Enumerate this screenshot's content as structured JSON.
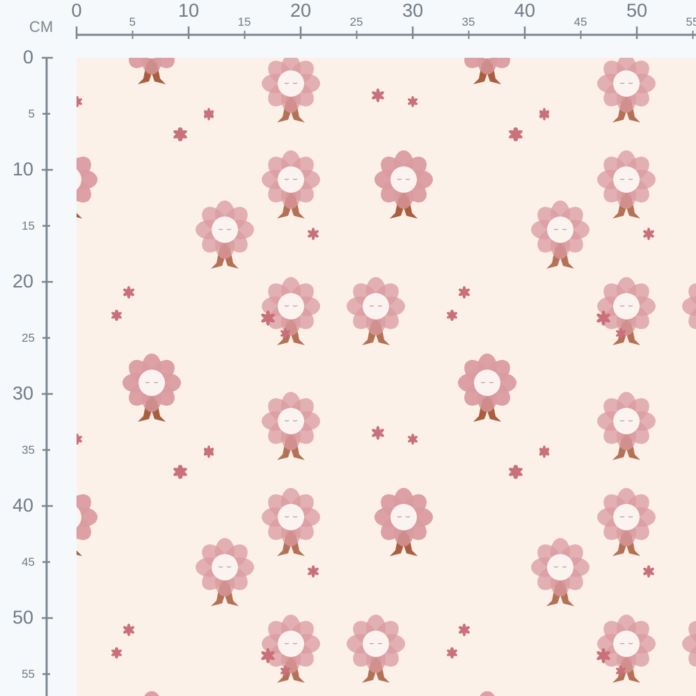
{
  "ruler": {
    "unit": "CM",
    "horizontal_labels": [
      "0",
      "5",
      "10",
      "15",
      "20",
      "25",
      "30",
      "35",
      "40",
      "45",
      "50",
      "55"
    ],
    "vertical_labels": [
      "0",
      "5",
      "10",
      "15",
      "20",
      "25",
      "30",
      "35",
      "40",
      "45",
      "50",
      "55"
    ]
  },
  "fabric": {
    "background_color": "#fcf1e8",
    "motif": "flower-fairy",
    "petal_color": "#d99aa0",
    "body_color": "#a85a3c",
    "star_color": "#c9707a"
  }
}
